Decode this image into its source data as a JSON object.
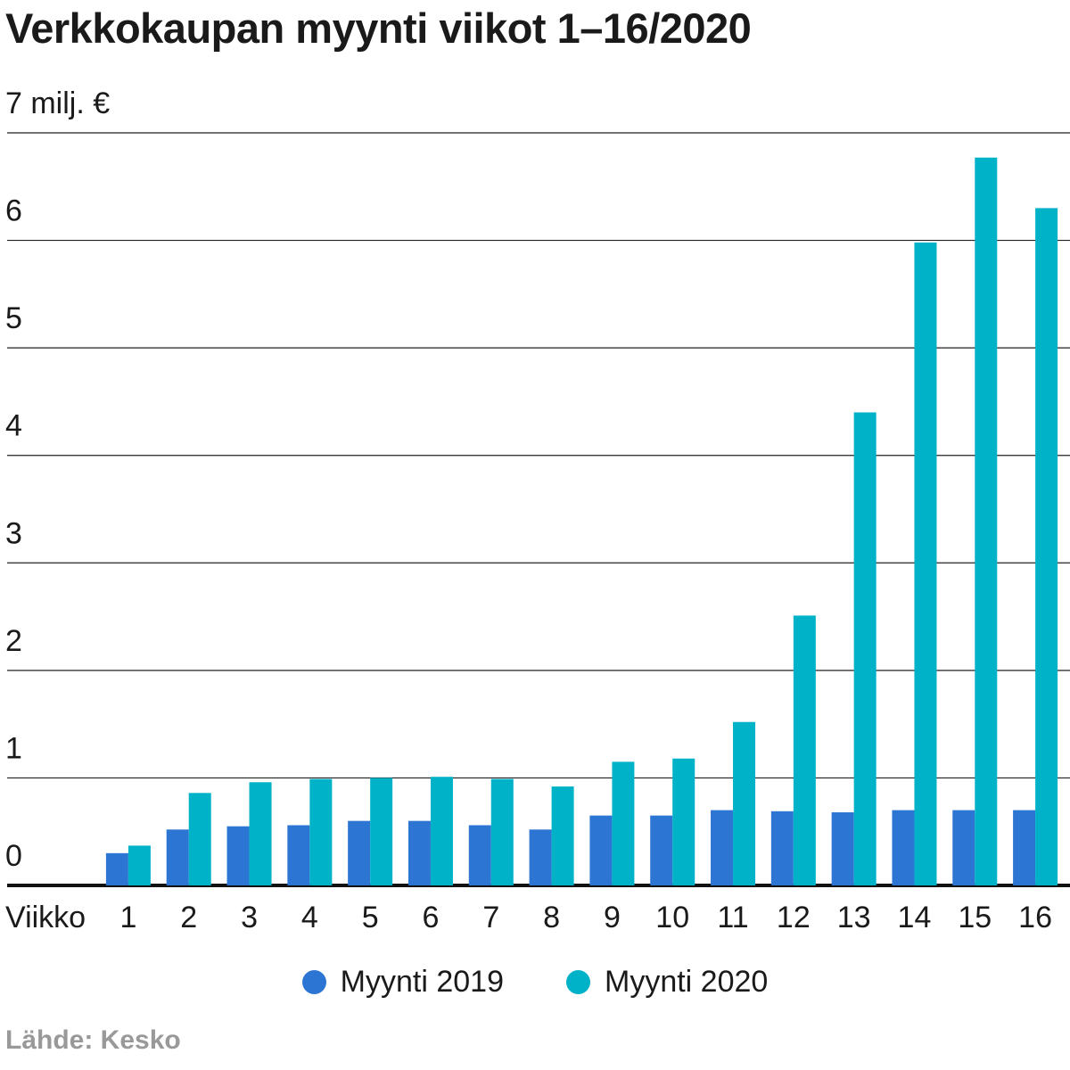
{
  "title": "Verkkokaupan myynti viikot 1–16/2020",
  "source": "Lähde: Kesko",
  "colors": {
    "series_2019": "#2c75d2",
    "series_2020": "#00b2c7",
    "grid": "#222222"
  },
  "chart_data": {
    "type": "bar",
    "title": "Verkkokaupan myynti viikot 1–16/2020",
    "xlabel": "Viikko",
    "ylabel": "",
    "ylim": [
      0,
      7
    ],
    "top_tick_label": "7 milj. €",
    "y_ticks": [
      "0",
      "1",
      "2",
      "3",
      "4",
      "5",
      "6"
    ],
    "categories": [
      "1",
      "2",
      "3",
      "4",
      "5",
      "6",
      "7",
      "8",
      "9",
      "10",
      "11",
      "12",
      "13",
      "14",
      "15",
      "16"
    ],
    "series": [
      {
        "name": "Myynti 2019",
        "values": [
          0.3,
          0.52,
          0.55,
          0.56,
          0.6,
          0.6,
          0.56,
          0.52,
          0.65,
          0.65,
          0.7,
          0.69,
          0.68,
          0.7,
          0.7,
          0.7
        ]
      },
      {
        "name": "Myynti 2020",
        "values": [
          0.37,
          0.86,
          0.96,
          0.99,
          1.0,
          1.01,
          0.99,
          0.92,
          1.15,
          1.18,
          1.52,
          2.51,
          4.4,
          5.98,
          6.77,
          6.3
        ]
      }
    ],
    "grid": true,
    "legend": "bottom-center"
  }
}
